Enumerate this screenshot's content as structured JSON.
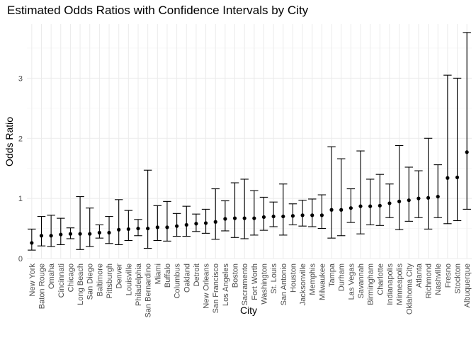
{
  "chart_data": {
    "type": "errorbar",
    "title": "Estimated Odds Ratios with Confidence Intervals by City",
    "xlabel": "City",
    "ylabel": "Odds Ratio",
    "ylim": [
      0,
      3.9
    ],
    "y_ticks": [
      0,
      1,
      2,
      3
    ],
    "grid": true,
    "legend": "none",
    "categories": [
      "New York",
      "Baton Rouge",
      "Omaha",
      "Cincinnati",
      "Chicago",
      "Long Beach",
      "San Diego",
      "Baltimore",
      "Pittsburgh",
      "Denver",
      "Louisville",
      "Philadelphia",
      "San Bernardino",
      "Miami",
      "Buffalo",
      "Columbus",
      "Oakland",
      "Detroit",
      "New Orleans",
      "San Francisco",
      "Los Angeles",
      "Boston",
      "Sacramento",
      "Fort Worth",
      "Washington",
      "St. Louis",
      "San Antonio",
      "Houston",
      "Jacksonville",
      "Memphis",
      "Milwaukee",
      "Tampa",
      "Durham",
      "Las Vegas",
      "Savannah",
      "Birmingham",
      "Charlotte",
      "Indianapolis",
      "Minneapolis",
      "Oklahoma City",
      "Atlanta",
      "Richmond",
      "Nashville",
      "Fresno",
      "Stockton",
      "Albuquerque"
    ],
    "estimate": [
      0.26,
      0.38,
      0.38,
      0.4,
      0.41,
      0.41,
      0.41,
      0.43,
      0.43,
      0.48,
      0.49,
      0.5,
      0.5,
      0.52,
      0.52,
      0.54,
      0.56,
      0.58,
      0.59,
      0.61,
      0.66,
      0.67,
      0.67,
      0.67,
      0.69,
      0.7,
      0.7,
      0.71,
      0.72,
      0.72,
      0.72,
      0.81,
      0.81,
      0.84,
      0.87,
      0.87,
      0.88,
      0.92,
      0.95,
      0.97,
      1.0,
      1.01,
      1.03,
      1.34,
      1.35,
      1.77
    ],
    "lower": [
      0.14,
      0.21,
      0.2,
      0.23,
      0.33,
      0.15,
      0.2,
      0.34,
      0.25,
      0.23,
      0.3,
      0.38,
      0.17,
      0.3,
      0.29,
      0.37,
      0.37,
      0.45,
      0.42,
      0.32,
      0.46,
      0.35,
      0.33,
      0.39,
      0.47,
      0.53,
      0.39,
      0.56,
      0.54,
      0.53,
      0.5,
      0.34,
      0.38,
      0.6,
      0.41,
      0.56,
      0.55,
      0.68,
      0.48,
      0.62,
      0.68,
      0.49,
      0.68,
      0.58,
      0.63,
      0.82
    ],
    "upper": [
      0.49,
      0.7,
      0.72,
      0.67,
      0.51,
      1.03,
      0.84,
      0.56,
      0.7,
      0.98,
      0.8,
      0.65,
      1.47,
      0.88,
      0.95,
      0.75,
      0.87,
      0.74,
      0.82,
      1.16,
      0.96,
      1.26,
      1.32,
      1.13,
      1.02,
      0.94,
      1.24,
      0.91,
      0.97,
      0.99,
      1.06,
      1.86,
      1.66,
      1.16,
      1.79,
      1.32,
      1.4,
      1.24,
      1.88,
      1.52,
      1.46,
      2.0,
      1.56,
      3.05,
      3.0,
      3.76
    ]
  }
}
